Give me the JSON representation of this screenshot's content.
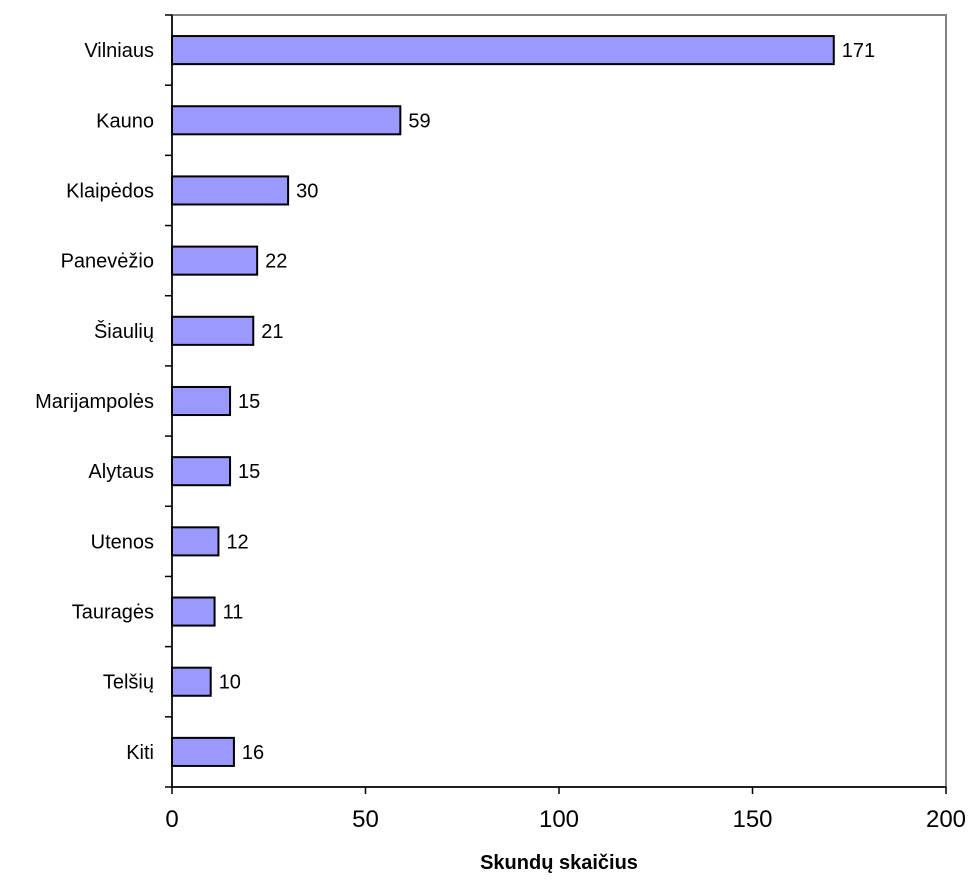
{
  "chart_data": {
    "type": "bar",
    "orientation": "horizontal",
    "categories": [
      "Vilniaus",
      "Kauno",
      "Klaipėdos",
      "Panevėžio",
      "Šiaulių",
      "Marijampolės",
      "Alytaus",
      "Utenos",
      "Tauragės",
      "Telšių",
      "Kiti"
    ],
    "values": [
      171,
      59,
      30,
      22,
      21,
      15,
      15,
      12,
      11,
      10,
      16
    ],
    "value_labels": [
      "171",
      "59",
      "30",
      "22",
      "21",
      "15",
      "15",
      "12",
      "11",
      "10",
      "16"
    ],
    "title": "",
    "xlabel": "Skundų skaičius",
    "ylabel": "",
    "xlim": [
      0,
      200
    ],
    "x_ticks": [
      "0",
      "50",
      "100",
      "150",
      "200"
    ],
    "grid": false,
    "legend": "none",
    "colors": {
      "bar_fill": "#9999ff",
      "bar_stroke": "#000000",
      "plot_border": "#808080",
      "axis": "#000000"
    }
  }
}
